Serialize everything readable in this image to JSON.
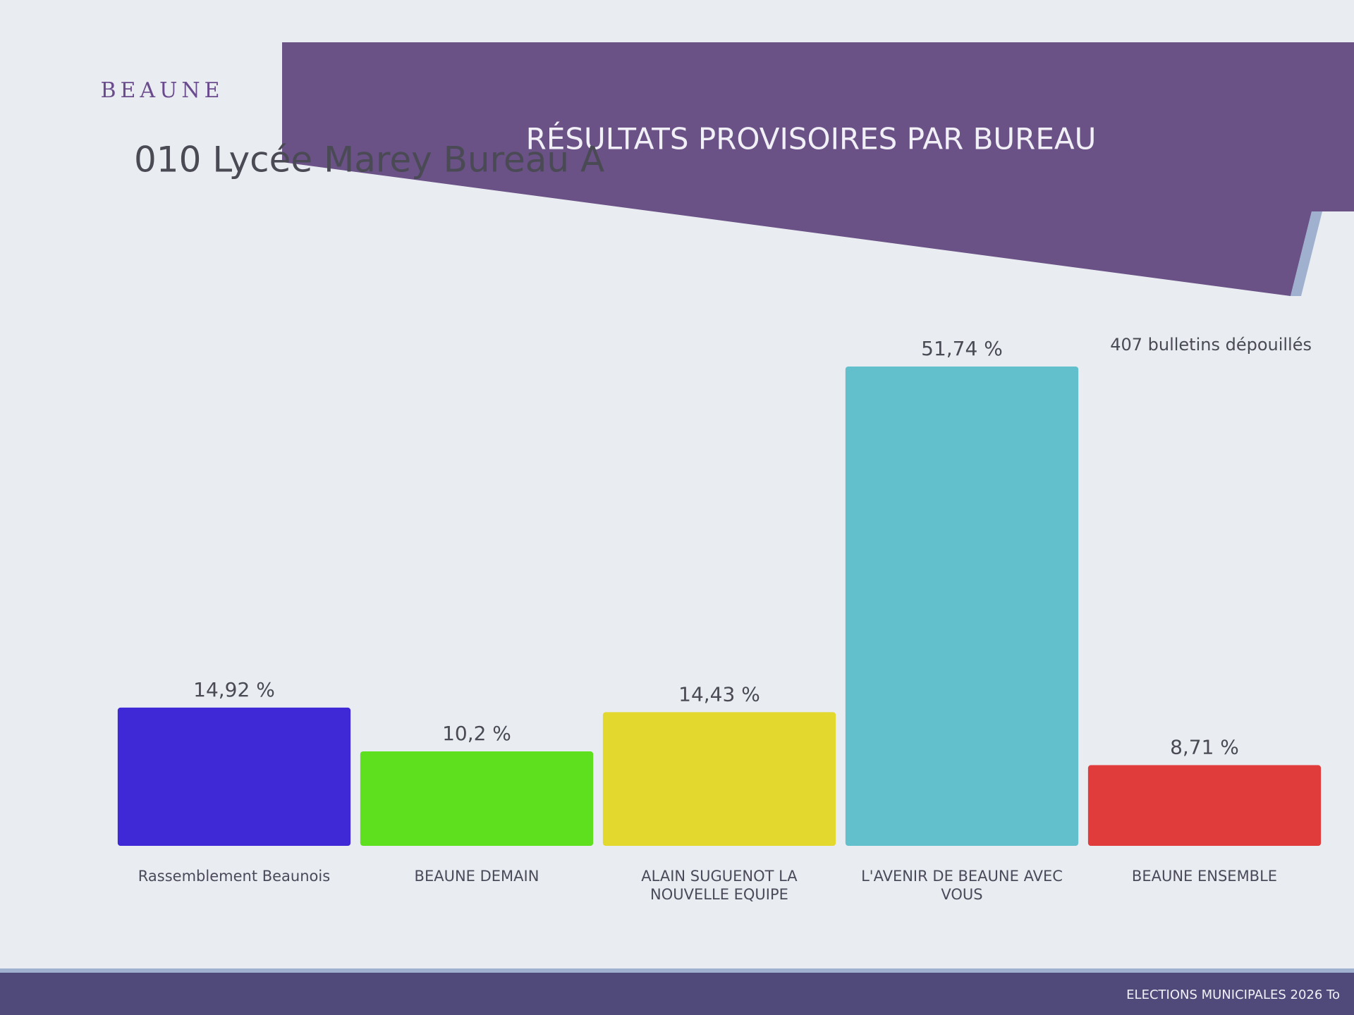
{
  "logo": "BEAUNE",
  "footer": "ELECTIONS MUNICIPALES 2026 To",
  "chart_data": {
    "type": "bar",
    "title": "RÉSULTATS PROVISOIRES PAR BUREAU",
    "subtitle": "010 Lycée Marey Bureau A",
    "annotation": "407 bulletins dépouillés",
    "categories": [
      "Rassemblement Beaunois",
      "BEAUNE DEMAIN",
      "ALAIN SUGUENOT LA NOUVELLE EQUIPE",
      "L'AVENIR DE BEAUNE AVEC VOUS",
      "BEAUNE ENSEMBLE"
    ],
    "values": [
      14.92,
      10.2,
      14.43,
      51.74,
      8.71
    ],
    "value_labels": [
      "14,92 %",
      "10,2 %",
      "14,43 %",
      "51,74 %",
      "8,71 %"
    ],
    "colors": [
      "#3f28d6",
      "#5ee01f",
      "#e3d92e",
      "#62c0cc",
      "#e03c3c"
    ]
  }
}
